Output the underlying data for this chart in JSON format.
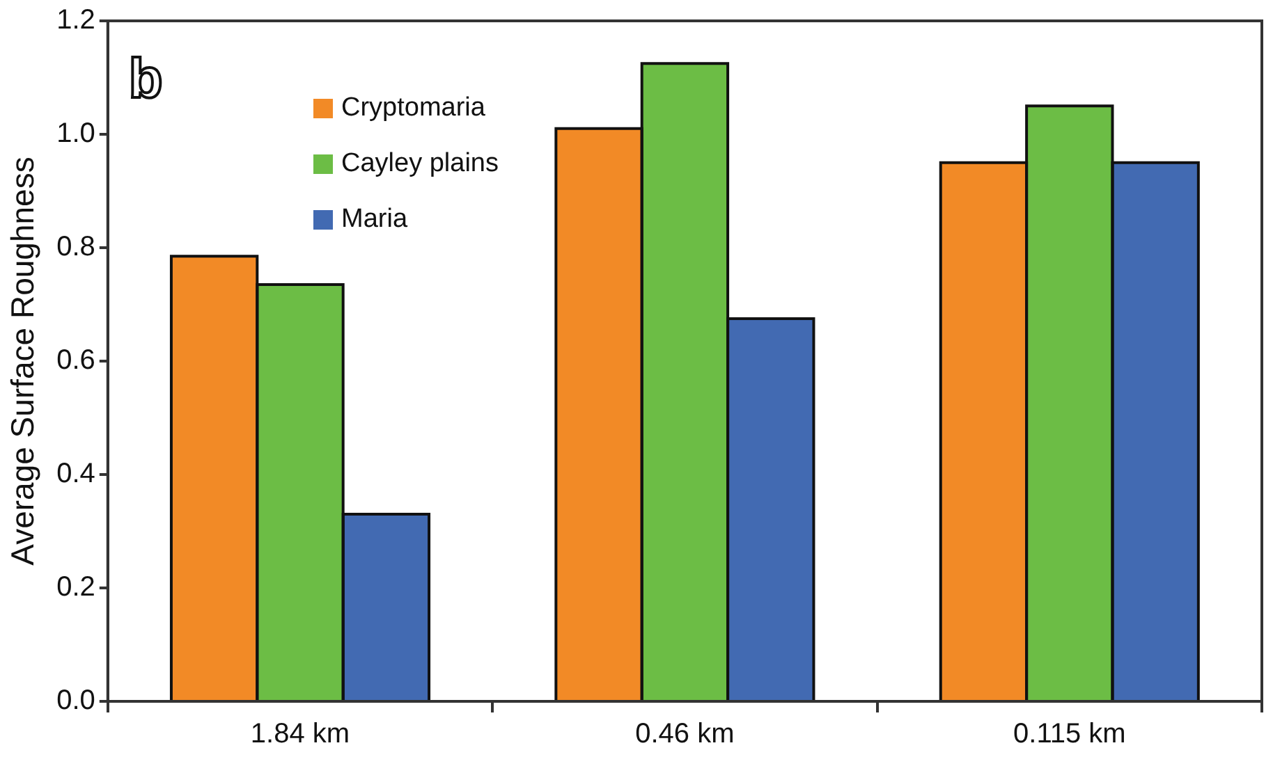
{
  "chart_data": {
    "type": "bar",
    "ylabel": "Average Surface Roughness",
    "annotations": [
      "b"
    ],
    "categories": [
      "1.84 km",
      "0.46 km",
      "0.115 km"
    ],
    "series": [
      {
        "name": "Cryptomaria",
        "color": "#f28a26",
        "values": [
          0.785,
          1.01,
          0.95
        ]
      },
      {
        "name": "Cayley plains",
        "color": "#6cbd45",
        "values": [
          0.735,
          1.125,
          1.05
        ]
      },
      {
        "name": "Maria",
        "color": "#426ab2",
        "values": [
          0.33,
          0.675,
          0.95
        ]
      }
    ],
    "ylim": [
      0,
      1.2
    ],
    "yticks": [
      {
        "value": 0,
        "label": "0.0"
      },
      {
        "value": 0.2,
        "label": "0.2"
      },
      {
        "value": 0.4,
        "label": "0.4"
      },
      {
        "value": 0.6,
        "label": "0.6"
      },
      {
        "value": 0.8,
        "label": "0.8"
      },
      {
        "value": 1,
        "label": "1.0"
      },
      {
        "value": 1.2,
        "label": "1.2"
      }
    ],
    "grid": false,
    "legend": "top left"
  }
}
